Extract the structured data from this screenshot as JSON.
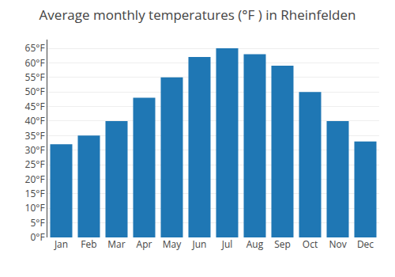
{
  "chart_data": {
    "type": "bar",
    "title": "Average monthly temperatures (°F ) in Rheinfelden",
    "categories": [
      "Jan",
      "Feb",
      "Mar",
      "Apr",
      "May",
      "Jun",
      "Jul",
      "Aug",
      "Sep",
      "Oct",
      "Nov",
      "Dec"
    ],
    "values": [
      32,
      35,
      40,
      48,
      55,
      62,
      65,
      63,
      59,
      50,
      40,
      33
    ],
    "ylim": [
      0,
      68
    ],
    "yticks": [
      {
        "value": 0,
        "label": "0°F"
      },
      {
        "value": 5,
        "label": "5°F"
      },
      {
        "value": 10,
        "label": "10°F"
      },
      {
        "value": 15,
        "label": "15°F"
      },
      {
        "value": 20,
        "label": "20°F"
      },
      {
        "value": 25,
        "label": "25°F"
      },
      {
        "value": 30,
        "label": "30°F"
      },
      {
        "value": 35,
        "label": "35°F"
      },
      {
        "value": 40,
        "label": "40°F"
      },
      {
        "value": 45,
        "label": "45°F"
      },
      {
        "value": 50,
        "label": "50°F"
      },
      {
        "value": 55,
        "label": "55°F"
      },
      {
        "value": 60,
        "label": "60°F"
      },
      {
        "value": 65,
        "label": "65°F"
      }
    ],
    "grid": true
  }
}
